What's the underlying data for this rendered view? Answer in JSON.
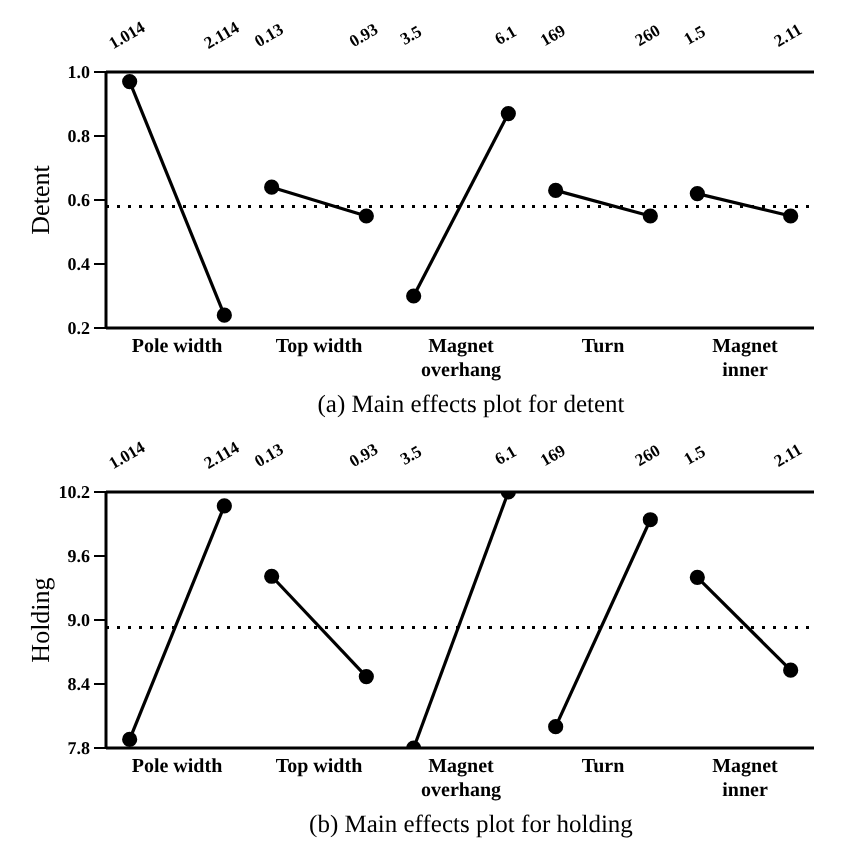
{
  "chart_data": [
    {
      "type": "line",
      "ylabel": "Detent",
      "annotations": [
        "(a) Main effects plot for detent"
      ],
      "categories": [
        "1.014",
        "2.114"
      ],
      "xlabel": "Pole width",
      "values": [
        0.97,
        0.24
      ],
      "color": "#000000",
      "marker": "circle",
      "ylim": [
        0.2,
        1.0
      ],
      "yticks": [
        0.2,
        0.4,
        0.6,
        0.8,
        {
          "value": 1,
          "label": "1.0"
        }
      ],
      "ref_lines": [
        {
          "axis": "y",
          "value": 0.58,
          "line_style": "dotted"
        }
      ]
    },
    {
      "type": "line",
      "categories": [
        "0.13",
        "0.93"
      ],
      "xlabel": "Top width",
      "values": [
        0.64,
        0.55
      ],
      "color": "#000000",
      "marker": "circle",
      "ylim": [
        0.2,
        1.0
      ],
      "tick_labels": "x",
      "ref_lines": [
        {
          "axis": "y",
          "value": 0.58,
          "line_style": "dotted"
        }
      ]
    },
    {
      "type": "line",
      "categories": [
        "3.5",
        "6.1"
      ],
      "xlabel": "Magnet overhang",
      "values": [
        0.3,
        0.87
      ],
      "color": "#000000",
      "marker": "circle",
      "ylim": [
        0.2,
        1.0
      ],
      "tick_labels": "x",
      "ref_lines": [
        {
          "axis": "y",
          "value": 0.58,
          "line_style": "dotted"
        }
      ]
    },
    {
      "type": "line",
      "categories": [
        "169",
        "260"
      ],
      "xlabel": "Turn",
      "values": [
        0.63,
        0.55
      ],
      "color": "#000000",
      "marker": "circle",
      "ylim": [
        0.2,
        1.0
      ],
      "tick_labels": "x",
      "ref_lines": [
        {
          "axis": "y",
          "value": 0.58,
          "line_style": "dotted"
        }
      ]
    },
    {
      "type": "line",
      "categories": [
        "1.5",
        "2.11"
      ],
      "xlabel": "Magnet inner",
      "values": [
        0.62,
        0.55
      ],
      "color": "#000000",
      "marker": "circle",
      "ylim": [
        0.2,
        1.0
      ],
      "tick_labels": "x",
      "ref_lines": [
        {
          "axis": "y",
          "value": 0.58,
          "line_style": "dotted"
        }
      ]
    },
    {
      "type": "line",
      "ylabel": "Holding",
      "annotations": [
        "(b) Main effects plot for holding"
      ],
      "categories": [
        "1.014",
        "2.114"
      ],
      "xlabel": "Pole width",
      "values": [
        7.88,
        10.07
      ],
      "color": "#000000",
      "marker": "circle",
      "ylim": [
        7.8,
        10.2
      ],
      "yticks": [
        7.8,
        8.4,
        {
          "value": 9,
          "label": "9.0"
        },
        9.6,
        10.2
      ],
      "ref_lines": [
        {
          "axis": "y",
          "value": 8.93,
          "line_style": "dotted"
        }
      ]
    },
    {
      "type": "line",
      "categories": [
        "0.13",
        "0.93"
      ],
      "xlabel": "Top width",
      "values": [
        9.41,
        8.47
      ],
      "color": "#000000",
      "marker": "circle",
      "ylim": [
        7.8,
        10.2
      ],
      "tick_labels": "x",
      "ref_lines": [
        {
          "axis": "y",
          "value": 8.93,
          "line_style": "dotted"
        }
      ]
    },
    {
      "type": "line",
      "categories": [
        "3.5",
        "6.1"
      ],
      "xlabel": "Magnet overhang",
      "values": [
        7.8,
        10.2
      ],
      "color": "#000000",
      "marker": "circle",
      "ylim": [
        7.8,
        10.2
      ],
      "tick_labels": "x",
      "ref_lines": [
        {
          "axis": "y",
          "value": 8.93,
          "line_style": "dotted"
        }
      ]
    },
    {
      "type": "line",
      "categories": [
        "169",
        "260"
      ],
      "xlabel": "Turn",
      "values": [
        8.0,
        9.94
      ],
      "color": "#000000",
      "marker": "circle",
      "ylim": [
        7.8,
        10.2
      ],
      "tick_labels": "x",
      "ref_lines": [
        {
          "axis": "y",
          "value": 8.93,
          "line_style": "dotted"
        }
      ]
    },
    {
      "type": "line",
      "categories": [
        "1.5",
        "2.11"
      ],
      "xlabel": "Magnet inner",
      "values": [
        9.4,
        8.53
      ],
      "color": "#000000",
      "marker": "circle",
      "ylim": [
        7.8,
        10.2
      ],
      "tick_labels": "x",
      "ref_lines": [
        {
          "axis": "y",
          "value": 8.93,
          "line_style": "dotted"
        }
      ]
    }
  ]
}
